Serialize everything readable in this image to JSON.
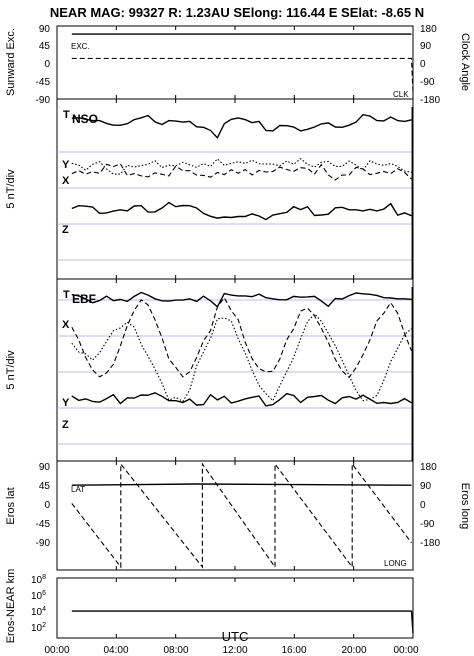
{
  "header": {
    "title": "NEAR MAG: 99327  R: 1.23AU  SElong:  116.44 E  SElat:   -8.65 N"
  },
  "colors": {
    "trace": "#000000",
    "frame": "#000000",
    "grid": "#a8a8dc"
  },
  "x_axis": {
    "label": "UTC",
    "ticks": [
      "00:00",
      "04:00",
      "08:00",
      "12:00",
      "16:00",
      "20:00",
      "00:00"
    ],
    "range_hours": [
      0,
      24
    ]
  },
  "panels": [
    {
      "id": "p1",
      "ylabel_left": "Sunward Exc.",
      "ylabel_right": "Clock Angle",
      "ticks_left": [
        "90",
        "45",
        "0",
        "-45",
        "-90"
      ],
      "ticks_right": [
        "180",
        "90",
        "0",
        "-90",
        "-180"
      ],
      "marks": [
        "EXC.",
        "CLK"
      ]
    },
    {
      "id": "p2",
      "ylabel_left": "5 nT/div",
      "marks": [
        "T",
        "NSO",
        "Y",
        "X",
        "Z"
      ]
    },
    {
      "id": "p3",
      "ylabel_left": "5 nT/div",
      "marks": [
        "T",
        "EBF",
        "X",
        "Y",
        "Z"
      ]
    },
    {
      "id": "p4",
      "ylabel_left": "Eros lat",
      "ylabel_right": "Eros long",
      "ticks_left": [
        "90",
        "45",
        "0",
        "-45",
        "-90"
      ],
      "ticks_right": [
        "180",
        "90",
        "0",
        "-90",
        "-180"
      ],
      "marks": [
        "LAT",
        "LONG"
      ]
    },
    {
      "id": "p5",
      "ylabel_left": "Eros-NEAR km",
      "ticks_left": [
        {
          "base": "10",
          "exp": "8"
        },
        {
          "base": "10",
          "exp": "6"
        },
        {
          "base": "10",
          "exp": "4"
        },
        {
          "base": "10",
          "exp": "2"
        }
      ]
    }
  ],
  "chart_data": [
    {
      "type": "line",
      "panel": "p1",
      "x_unit": "hours UTC",
      "ylim_left": [
        -90,
        90
      ],
      "ylim_right": [
        -180,
        180
      ],
      "series": [
        {
          "name": "EXC.",
          "axis": "left",
          "style": "solid",
          "x": [
            1,
            23.9
          ],
          "values": [
            70,
            70
          ]
        },
        {
          "name": "CLK",
          "axis": "right",
          "style": "dashed",
          "x": [
            1,
            23.9,
            24.0
          ],
          "values": [
            20,
            20,
            -150
          ]
        }
      ]
    },
    {
      "type": "line",
      "panel": "p2",
      "x_unit": "hours UTC",
      "x_range": [
        1,
        23.9
      ],
      "ylim": [
        -30,
        40
      ],
      "series": [
        {
          "name": "T",
          "style": "solid",
          "values": [
            32.5,
            32.7,
            32.1,
            31.6,
            31.6,
            30.5,
            29.8,
            29.8,
            30.4,
            32.0,
            32.7,
            33.6,
            31.1,
            30.1,
            31.6,
            31.4,
            31.0,
            31.3,
            29.2,
            29.0,
            27.8,
            24.9,
            30.4,
            32.1,
            32.6,
            32.0,
            30.8,
            31.3,
            27.8,
            27.6,
            29.7,
            29.6,
            29.1,
            27.6,
            28.2,
            29.1,
            30.3,
            30.7,
            29.1,
            29.0,
            29.8,
            31.0,
            33.9,
            33.4,
            31.6,
            31.5,
            33.0,
            31.6,
            31.3,
            31.9
          ]
        },
        {
          "name": "Y",
          "style": "dotted",
          "values": [
            15.0,
            14.3,
            12.3,
            14.6,
            15.6,
            12.8,
            10.8,
            10.8,
            14.2,
            13.5,
            14.1,
            14.6,
            16.0,
            13.3,
            14.3,
            14.0,
            15.4,
            14.4,
            13.4,
            14.9,
            13.8,
            16.7,
            14.2,
            15.0,
            15.6,
            14.9,
            16.2,
            14.8,
            14.7,
            14.7,
            14.0,
            15.9,
            14.6,
            16.8,
            14.6,
            13.5,
            15.4,
            15.7,
            13.8,
            13.8,
            15.9,
            14.3,
            12.3,
            16.0,
            14.7,
            14.2,
            14.9,
            13.8,
            12.0,
            11.5
          ]
        },
        {
          "name": "X",
          "style": "dashed",
          "values": [
            11.0,
            12.1,
            10.8,
            11.7,
            11.1,
            14.6,
            13.7,
            14.8,
            10.3,
            11.0,
            10.1,
            9.7,
            11.3,
            10.7,
            10.1,
            13.9,
            12.1,
            12.1,
            10.4,
            10.3,
            9.6,
            11.4,
            10.6,
            12.5,
            11.1,
            12.6,
            10.5,
            12.2,
            11.6,
            11.8,
            13.5,
            12.6,
            11.9,
            13.3,
            13.0,
            10.8,
            14.5,
            10.5,
            8.5,
            10.4,
            10.5,
            13.4,
            12.8,
            10.6,
            11.1,
            11.8,
            11.0,
            12.9,
            11.4,
            8.9
          ]
        },
        {
          "name": "Z",
          "style": "solid",
          "values": [
            -2.6,
            -1.5,
            -1.7,
            -2.0,
            -4.5,
            -4.3,
            -3.6,
            -3.1,
            -3.5,
            -1.6,
            -1.5,
            -4.0,
            -3.9,
            -2.4,
            -0.3,
            -1.9,
            -1.4,
            -1.5,
            -2.4,
            -4.5,
            -5.6,
            -6.3,
            -5.9,
            -6.1,
            -5.7,
            -5.7,
            -4.7,
            -5.5,
            -6.9,
            -5.1,
            -4.6,
            -4.1,
            -1.9,
            -3.0,
            -1.9,
            -5.3,
            -5.1,
            -4.8,
            -2.3,
            -2.1,
            -3.1,
            -3.1,
            -3.5,
            -2.9,
            -3.5,
            -2.8,
            -0.7,
            -5.2,
            -4.3,
            -5.4
          ]
        }
      ]
    },
    {
      "type": "line",
      "panel": "p3",
      "x_unit": "hours UTC",
      "x_range": [
        1,
        23.9
      ],
      "ylim": [
        -30,
        40
      ],
      "series": [
        {
          "name": "T",
          "style": "solid",
          "values": [
            34.0,
            33.5,
            32.3,
            30.9,
            31.7,
            33.4,
            31.7,
            32.1,
            31.4,
            33.3,
            34.8,
            33.8,
            32.4,
            31.6,
            31.5,
            31.9,
            31.9,
            32.4,
            31.4,
            33.4,
            31.6,
            29.3,
            34.4,
            33.8,
            33.5,
            33.5,
            33.2,
            34.2,
            32.8,
            32.4,
            32.0,
            32.0,
            33.3,
            33.0,
            33.1,
            33.3,
            31.5,
            29.5,
            32.5,
            32.3,
            33.6,
            34.6,
            34.3,
            34.1,
            33.7,
            32.8,
            32.7,
            32.4,
            32.4,
            32.2
          ]
        },
        {
          "name": "X",
          "style": "dashed",
          "values": [
            21.5,
            16.5,
            9.8,
            5.0,
            2.4,
            3.9,
            7.2,
            14.3,
            22.1,
            27.9,
            32.0,
            30.0,
            24.3,
            17.4,
            9.2,
            6.0,
            2.4,
            4.3,
            9.8,
            16.2,
            20.1,
            29.2,
            32.8,
            27.8,
            24.4,
            15.8,
            9.4,
            5.5,
            4.3,
            4.5,
            9.2,
            16.6,
            20.9,
            27.6,
            28.8,
            25.9,
            21.0,
            15.7,
            9.1,
            4.6,
            2.2,
            5.9,
            10.9,
            16.5,
            23.9,
            26.8,
            30.9,
            26.8,
            19.0,
            12.4
          ]
        },
        {
          "name": "Y",
          "style": "dotted",
          "values": [
            15.3,
            11.9,
            11.2,
            8.8,
            11.6,
            16.0,
            20.1,
            21.2,
            23.4,
            21.5,
            14.9,
            10.2,
            5.4,
            -0.2,
            -6.6,
            -5.5,
            -7.1,
            -2.8,
            6.6,
            11.9,
            17.2,
            24.7,
            25.0,
            23.9,
            17.0,
            11.6,
            4.9,
            -0.9,
            -4.1,
            -6.8,
            -1.0,
            4.4,
            9.9,
            17.0,
            23.6,
            26.6,
            23.7,
            19.1,
            14.4,
            8.7,
            2.8,
            -2.9,
            -6.8,
            -6.3,
            -4.8,
            1.0,
            8.2,
            13.4,
            18.7,
            20.9
          ]
        },
        {
          "name": "Z",
          "style": "solid",
          "values": [
            -5.0,
            -6.7,
            -6.1,
            -7.1,
            -7.4,
            -6.0,
            -4.5,
            -7.9,
            -5.7,
            -5.8,
            -4.6,
            -4.7,
            -3.8,
            -5.1,
            -6.8,
            -6.8,
            -7.5,
            -6.2,
            -8.5,
            -8.3,
            -4.5,
            -6.5,
            -5.1,
            -7.7,
            -7.0,
            -6.1,
            -5.5,
            -5.0,
            -8.8,
            -8.3,
            -6.4,
            -4.1,
            -4.8,
            -7.5,
            -5.5,
            -5.2,
            -4.8,
            -6.6,
            -7.9,
            -5.7,
            -5.2,
            -6.2,
            -4.7,
            -6.2,
            -7.8,
            -7.5,
            -7.9,
            -7.5,
            -6.0,
            -7.6
          ]
        }
      ]
    },
    {
      "type": "line",
      "panel": "p4",
      "x_unit": "hours UTC",
      "ylim_left": [
        -90,
        90
      ],
      "ylim_right": [
        -180,
        180
      ],
      "series": [
        {
          "name": "LAT",
          "axis": "left",
          "style": "solid",
          "x": [
            1,
            9.3,
            23.9
          ],
          "values": [
            50,
            52,
            50
          ]
        },
        {
          "name": "LONG",
          "axis": "right",
          "style": "dashed",
          "x": [
            1,
            4.3,
            4.3,
            9.8,
            9.8,
            14.7,
            14.7,
            19.9,
            19.9,
            23.9
          ],
          "values": [
            40,
            -170,
            170,
            -170,
            170,
            -170,
            170,
            -170,
            170,
            -90
          ]
        }
      ]
    },
    {
      "type": "line",
      "panel": "p5",
      "x_unit": "hours UTC",
      "yscale": "log",
      "ylim": [
        30,
        100000000
      ],
      "series": [
        {
          "name": "",
          "style": "solid",
          "x": [
            1,
            23.9,
            24.0
          ],
          "values": [
            25000,
            25000,
            100
          ]
        }
      ]
    }
  ]
}
